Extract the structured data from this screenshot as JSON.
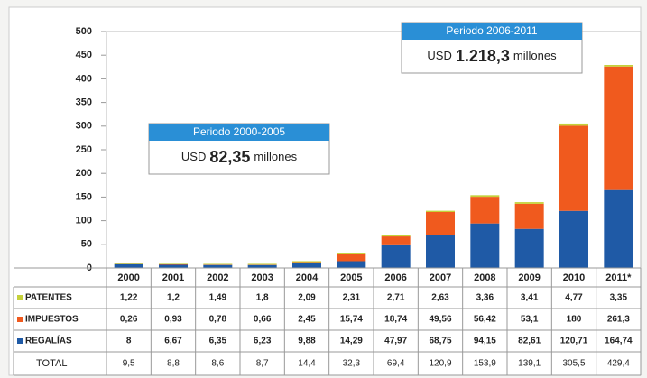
{
  "chart_data": {
    "type": "stacked_bar",
    "categories": [
      "2000",
      "2001",
      "2002",
      "2003",
      "2004",
      "2005",
      "2006",
      "2007",
      "2008",
      "2009",
      "2010",
      "2011*"
    ],
    "series": [
      {
        "name": "PATENTES",
        "color": "#c5d13a",
        "values": [
          1.22,
          1.2,
          1.49,
          1.8,
          2.09,
          2.31,
          2.71,
          2.63,
          3.36,
          3.41,
          4.77,
          3.35
        ],
        "value_labels": [
          "1,22",
          "1,2",
          "1,49",
          "1,8",
          "2,09",
          "2,31",
          "2,71",
          "2,63",
          "3,36",
          "3,41",
          "4,77",
          "3,35"
        ]
      },
      {
        "name": "IMPUESTOS",
        "color": "#f05a1e",
        "values": [
          0.26,
          0.93,
          0.78,
          0.66,
          2.45,
          15.74,
          18.74,
          49.56,
          56.42,
          53.1,
          180,
          261.3
        ],
        "value_labels": [
          "0,26",
          "0,93",
          "0,78",
          "0,66",
          "2,45",
          "15,74",
          "18,74",
          "49,56",
          "56,42",
          "53,1",
          "180",
          "261,3"
        ]
      },
      {
        "name": "REGALÍAS",
        "color": "#1f5aa6",
        "values": [
          8,
          6.67,
          6.35,
          6.23,
          9.88,
          14.29,
          47.97,
          68.75,
          94.15,
          82.61,
          120.71,
          164.74
        ],
        "value_labels": [
          "8",
          "6,67",
          "6,35",
          "6,23",
          "9,88",
          "14,29",
          "47,97",
          "68,75",
          "94,15",
          "82,61",
          "120,71",
          "164,74"
        ]
      }
    ],
    "total": {
      "name": "TOTAL",
      "values": [
        9.5,
        8.8,
        8.6,
        8.7,
        14.4,
        32.3,
        69.4,
        120.9,
        153.9,
        139.1,
        305.5,
        429.4
      ],
      "value_labels": [
        "9,5",
        "8,8",
        "8,6",
        "8,7",
        "14,4",
        "32,3",
        "69,4",
        "120,9",
        "153,9",
        "139,1",
        "305,5",
        "429,4"
      ]
    },
    "ylim": [
      0,
      500
    ],
    "yticks": [
      0,
      50,
      100,
      150,
      200,
      250,
      300,
      350,
      400,
      450,
      500
    ],
    "annotations": [
      {
        "title": "Periodo 2000-2005",
        "prefix": "USD",
        "amount": "82,35",
        "suffix": "millones"
      },
      {
        "title": "Periodo 2006-2011",
        "prefix": "USD",
        "amount": "1.218,3",
        "suffix": "millones"
      }
    ]
  }
}
